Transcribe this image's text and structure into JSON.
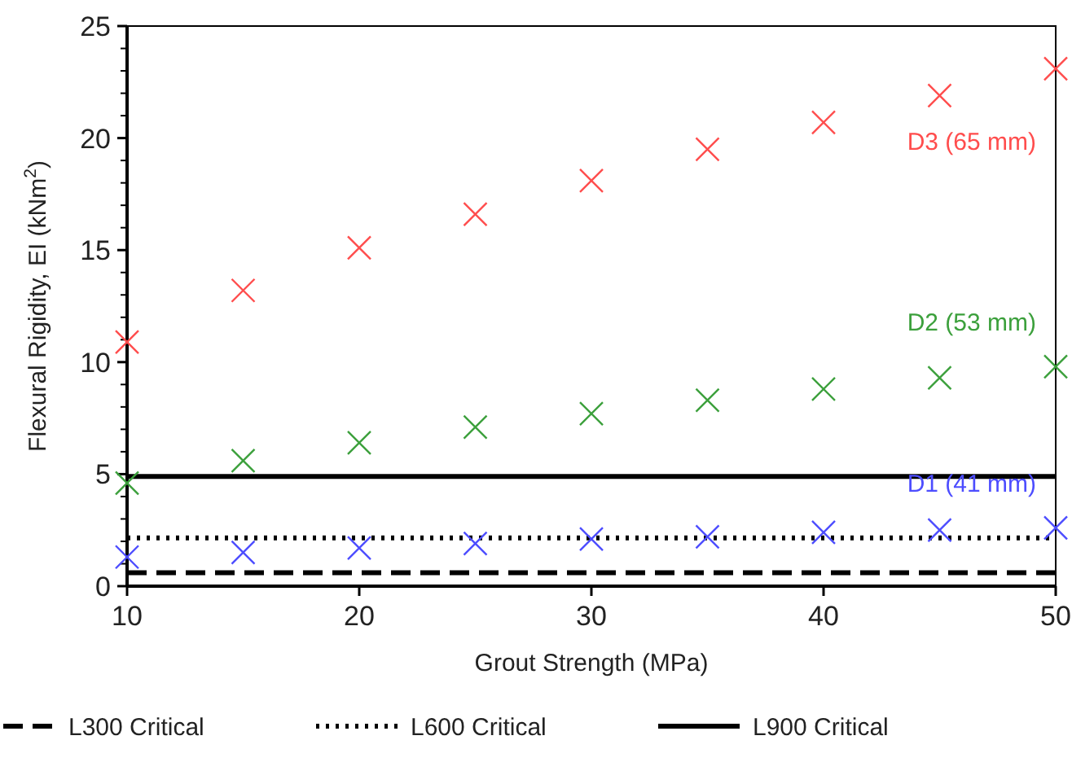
{
  "chart_data": {
    "type": "scatter",
    "xlabel": "Grout Strength (MPa)",
    "ylabel": "Flexural Rigidity, EI (kNm$^{2}$)",
    "xlim": [
      10,
      50
    ],
    "ylim": [
      0,
      25
    ],
    "xticks": [
      10,
      20,
      30,
      40,
      50
    ],
    "yticks": [
      0,
      5,
      10,
      15,
      20,
      25
    ],
    "grid": false,
    "legend": "bottom",
    "marker": "cross",
    "series": [
      {
        "name": "D3 (65 mm)",
        "color": "#ff4d4d",
        "x": [
          10,
          15,
          20,
          25,
          30,
          35,
          40,
          45,
          50
        ],
        "values": [
          10.9,
          13.2,
          15.1,
          16.6,
          18.1,
          19.5,
          20.7,
          21.9,
          23.1
        ]
      },
      {
        "name": "D2 (53 mm)",
        "color": "#3ca03c",
        "x": [
          10,
          15,
          20,
          25,
          30,
          35,
          40,
          45,
          50
        ],
        "values": [
          4.6,
          5.6,
          6.4,
          7.1,
          7.7,
          8.3,
          8.8,
          9.3,
          9.8
        ]
      },
      {
        "name": "D1 (41 mm)",
        "color": "#4d4dff",
        "x": [
          10,
          15,
          20,
          25,
          30,
          35,
          40,
          45,
          50
        ],
        "values": [
          1.3,
          1.5,
          1.7,
          1.9,
          2.1,
          2.2,
          2.4,
          2.5,
          2.6
        ]
      },
      {
        "name": "L300 Critical",
        "type": "line",
        "line_style": "dashed",
        "color": "#000000",
        "marker": "none",
        "x": [
          10,
          50
        ],
        "values": [
          0.6,
          0.6
        ]
      },
      {
        "name": "L600 Critical",
        "type": "line",
        "line_style": "dotted",
        "color": "#000000",
        "marker": "none",
        "x": [
          10,
          50
        ],
        "values": [
          2.15,
          2.15
        ]
      },
      {
        "name": "L900 Critical",
        "type": "line",
        "line_style": "solid",
        "color": "#000000",
        "marker": "none",
        "x": [
          10,
          50
        ],
        "values": [
          4.9,
          4.9
        ]
      }
    ]
  }
}
